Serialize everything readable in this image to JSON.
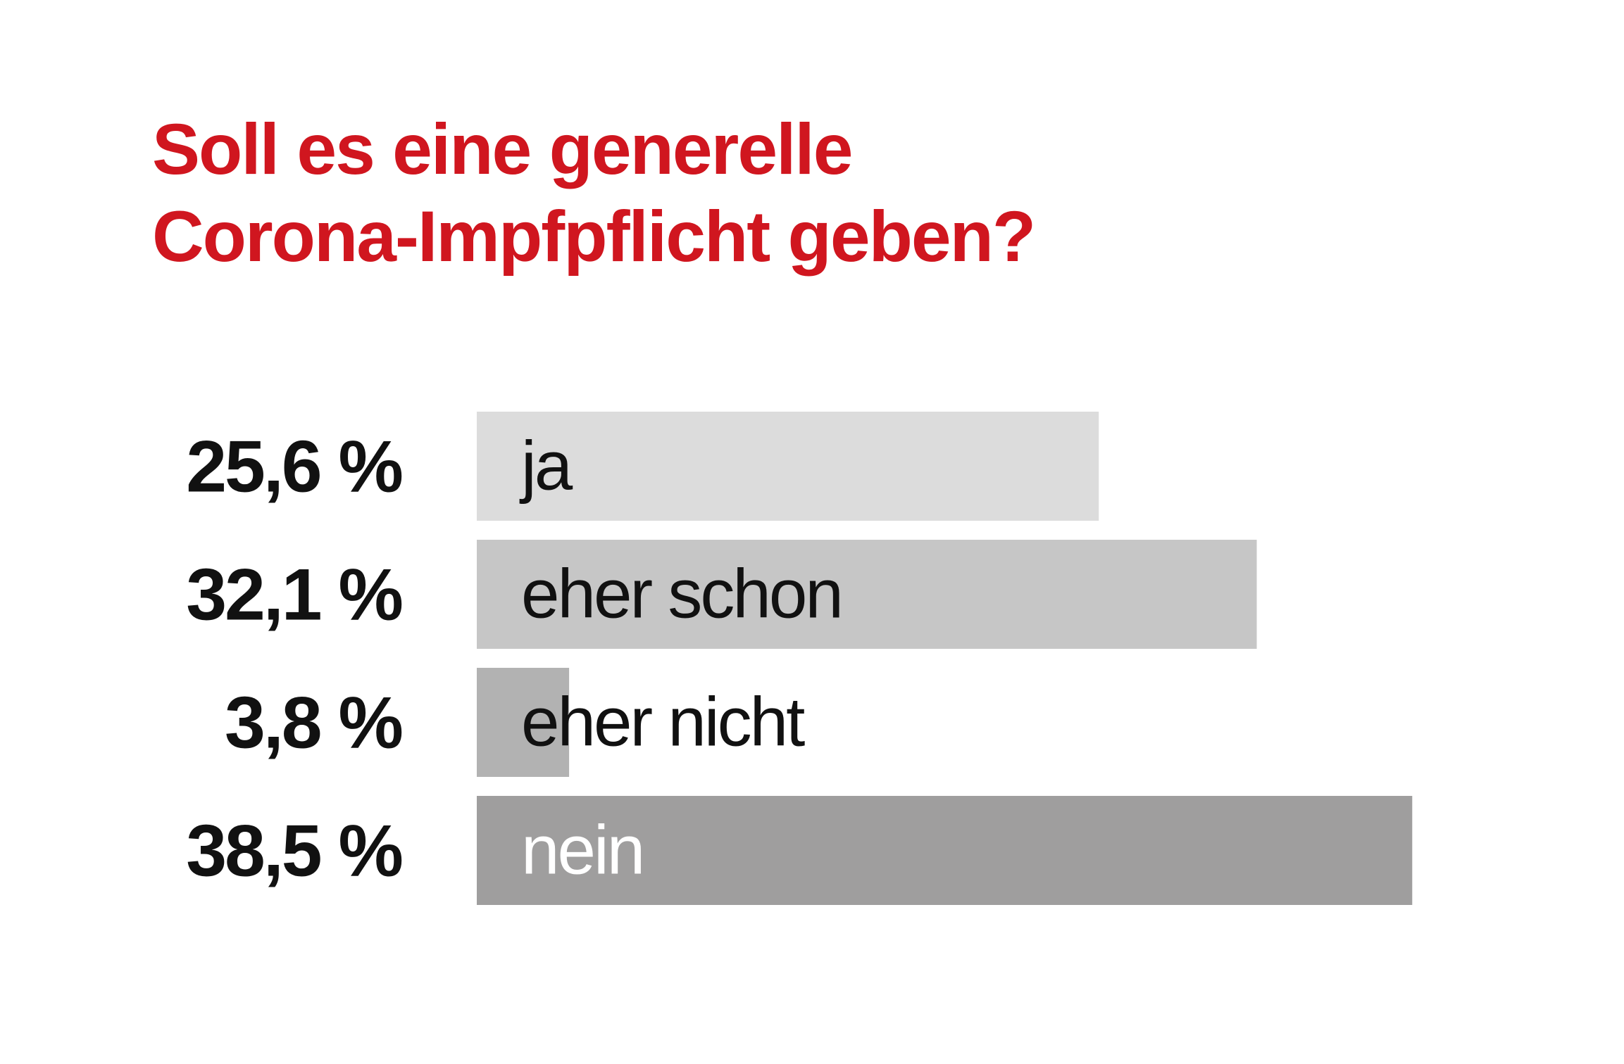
{
  "chart_data": {
    "type": "bar",
    "orientation": "horizontal",
    "title": "Soll es eine generelle Corona-Impfpflicht geben?",
    "title_lines": [
      "Soll es eine generelle",
      "Corona-Impfpflicht geben?"
    ],
    "categories": [
      "ja",
      "eher schon",
      "eher nicht",
      "nein"
    ],
    "values": [
      25.6,
      32.1,
      3.8,
      38.5
    ],
    "value_labels": [
      "25,6 %",
      "32,1 %",
      "3,8 %",
      "38,5 %"
    ],
    "bar_colors": [
      "#dcdcdc",
      "#c6c6c6",
      "#b2b2b2",
      "#9f9e9e"
    ],
    "label_colors": [
      "#111111",
      "#111111",
      "#111111",
      "#ffffff"
    ],
    "title_color": "#d0161f",
    "xlim": [
      0,
      40
    ],
    "grid": false,
    "legend": "none"
  }
}
